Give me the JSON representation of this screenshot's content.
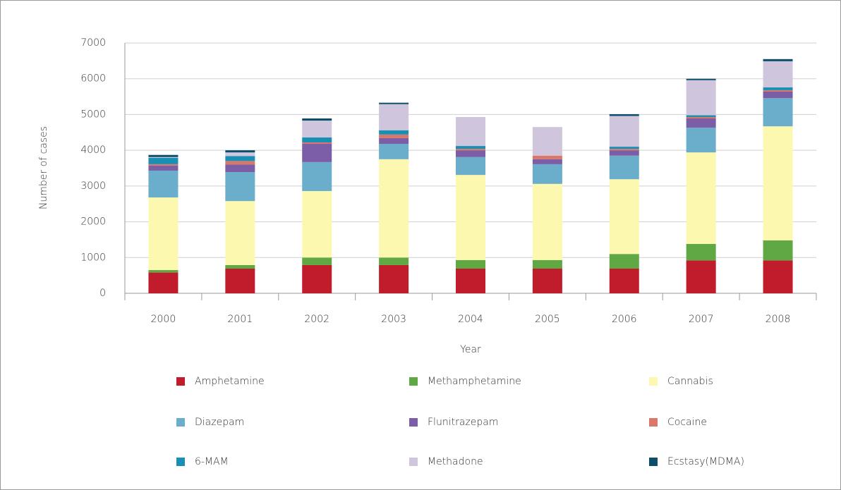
{
  "chart_data": {
    "type": "bar",
    "stacked": true,
    "x_label": "Year",
    "y_label": "Number of cases",
    "categories": [
      "2000",
      "2001",
      "2002",
      "2003",
      "2004",
      "2005",
      "2006",
      "2007",
      "2008"
    ],
    "series": [
      {
        "name": "Amphetamine",
        "color": "#c01c2c",
        "values": [
          580,
          690,
          790,
          790,
          690,
          690,
          690,
          920,
          920
        ]
      },
      {
        "name": "Methamphetamine",
        "color": "#5fa843",
        "values": [
          70,
          100,
          210,
          210,
          240,
          240,
          410,
          460,
          560
        ]
      },
      {
        "name": "Cannabis",
        "color": "#fdf8b0",
        "values": [
          2030,
          1790,
          1860,
          2750,
          2380,
          2130,
          2090,
          2560,
          3190
        ]
      },
      {
        "name": "Diazepam",
        "color": "#6aaecb",
        "values": [
          750,
          810,
          810,
          430,
          500,
          550,
          660,
          690,
          790
        ]
      },
      {
        "name": "Flunitrazepam",
        "color": "#7b5ea6",
        "values": [
          140,
          210,
          510,
          160,
          190,
          140,
          150,
          260,
          180
        ]
      },
      {
        "name": "Cocaine",
        "color": "#d9776a",
        "values": [
          40,
          100,
          40,
          100,
          40,
          100,
          40,
          40,
          40
        ]
      },
      {
        "name": "6-MAM",
        "color": "#1a8fb4",
        "values": [
          180,
          140,
          140,
          120,
          80,
          0,
          60,
          50,
          80
        ]
      },
      {
        "name": "Methadone",
        "color": "#cfc5dd",
        "values": [
          20,
          100,
          470,
          730,
          810,
          800,
          860,
          980,
          730
        ]
      },
      {
        "name": "Ecstasy(MDMA)",
        "color": "#0d4f6b",
        "values": [
          60,
          60,
          60,
          40,
          0,
          0,
          50,
          40,
          60
        ]
      }
    ],
    "ylim": [
      0,
      7000
    ],
    "yticks": [
      0,
      1000,
      2000,
      3000,
      4000,
      5000,
      6000,
      7000
    ],
    "grid": true
  }
}
